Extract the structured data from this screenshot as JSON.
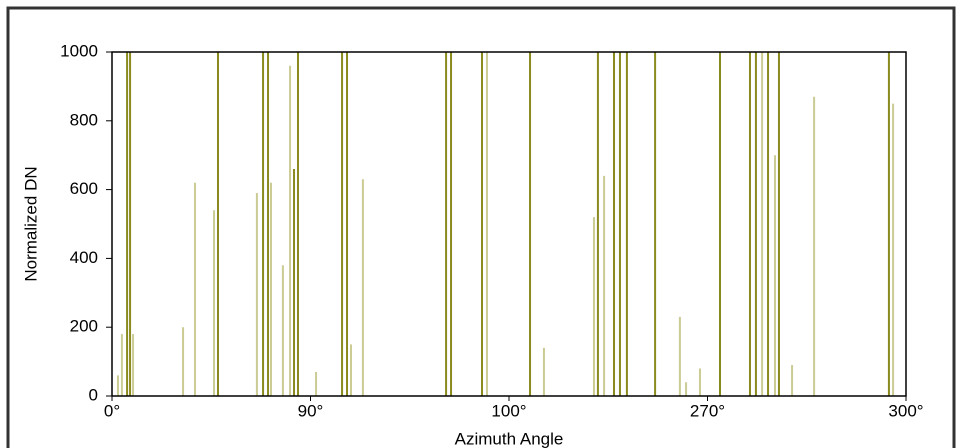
{
  "chart_data": {
    "type": "spikes",
    "y_label": "Normalized DN",
    "x_label": "Azimuth Angle",
    "xlim": [
      0,
      4
    ],
    "xticks": [
      {
        "value": 0,
        "label": "0°"
      },
      {
        "value": 1,
        "label": "90°"
      },
      {
        "value": 2,
        "label": "100°"
      },
      {
        "value": 3,
        "label": "270°"
      },
      {
        "value": 4,
        "label": "300°"
      }
    ],
    "ylim": [
      0,
      1000
    ],
    "yticks": [
      0,
      200,
      400,
      600,
      800,
      1000
    ],
    "series": [
      {
        "color": "#8a8a1e",
        "x": [
          0.076,
          0.091,
          0.534,
          0.761,
          0.786,
          0.917,
          0.937,
          1.159,
          1.184,
          1.683,
          1.708,
          1.864,
          2.106,
          2.448,
          2.529,
          2.559,
          2.594,
          2.736,
          3.063,
          3.214,
          3.244,
          3.305,
          3.36,
          3.914
        ],
        "values": [
          1000,
          1000,
          1000,
          1000,
          1000,
          660,
          1000,
          1000,
          1000,
          1000,
          1000,
          1000,
          1000,
          1000,
          1000,
          1000,
          1000,
          1000,
          1000,
          1000,
          1000,
          1000,
          1000,
          1000
        ]
      },
      {
        "color": "#cbcb94",
        "x": [
          0.03,
          0.05,
          0.106,
          0.358,
          0.418,
          0.514,
          0.73,
          0.801,
          0.861,
          0.897,
          1.028,
          1.204,
          1.264,
          1.889,
          2.176,
          2.428,
          2.479,
          2.861,
          2.892,
          2.962,
          3.275,
          3.34,
          3.426,
          3.537,
          3.935
        ],
        "values": [
          60,
          180,
          180,
          200,
          620,
          540,
          590,
          620,
          380,
          960,
          70,
          150,
          630,
          1000,
          140,
          520,
          640,
          230,
          40,
          80,
          1000,
          700,
          90,
          870,
          850
        ]
      }
    ]
  }
}
